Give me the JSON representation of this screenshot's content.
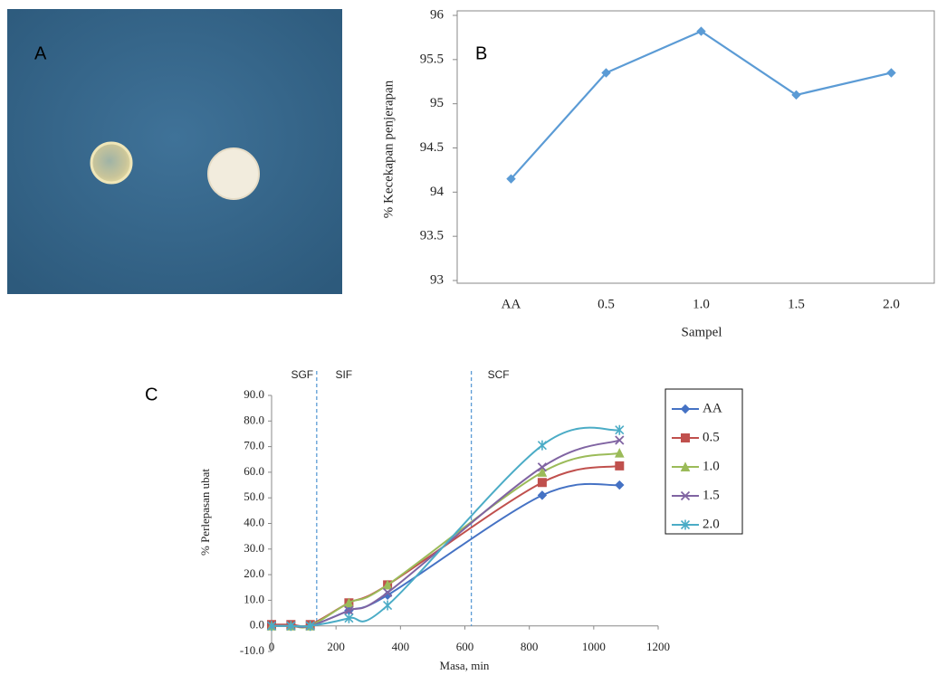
{
  "photo": {
    "label": "A"
  },
  "chart_data": [
    {
      "type": "line",
      "label": "B",
      "categories": [
        "AA",
        "0.5",
        "1.0",
        "1.5",
        "2.0"
      ],
      "values": [
        94.15,
        95.35,
        95.82,
        95.1,
        95.35
      ],
      "color": "#5b9bd5",
      "ylim": [
        93,
        96
      ],
      "yticks": [
        93,
        93.5,
        94,
        94.5,
        95,
        95.5,
        96
      ],
      "y_label": "% Kecekapan penjerapan",
      "x_label": "Sampel"
    },
    {
      "type": "line",
      "label": "C",
      "x": [
        0,
        60,
        120,
        240,
        360,
        840,
        1080
      ],
      "series": [
        {
          "name": "AA",
          "color": "#4572c4",
          "marker": "diamond",
          "values": [
            0,
            0,
            0,
            6,
            12,
            51,
            55
          ]
        },
        {
          "name": "0.5",
          "color": "#c0504d",
          "marker": "square",
          "values": [
            0.5,
            0.5,
            0.5,
            9,
            16,
            56,
            62.5
          ]
        },
        {
          "name": "1.0",
          "color": "#9bbb59",
          "marker": "triangle",
          "values": [
            0,
            0,
            0,
            9,
            16,
            60,
            67.5
          ]
        },
        {
          "name": "1.5",
          "color": "#8064a2",
          "marker": "x",
          "values": [
            0,
            0,
            0,
            6,
            13,
            62,
            72.5
          ]
        },
        {
          "name": "2.0",
          "color": "#4bacc6",
          "marker": "star",
          "values": [
            0,
            0,
            0,
            3,
            8,
            70.5,
            76.5
          ]
        }
      ],
      "xlim": [
        0,
        1200
      ],
      "xticks": [
        0,
        200,
        400,
        600,
        800,
        1000,
        1200
      ],
      "ylim": [
        -10,
        90
      ],
      "yticks": [
        {
          "value": -10,
          "label": "-10.0"
        },
        {
          "value": 0,
          "label": "0.0"
        },
        {
          "value": 10,
          "label": "10.0"
        },
        {
          "value": 20,
          "label": "20.0"
        },
        {
          "value": 30,
          "label": "30.0"
        },
        {
          "value": 40,
          "label": "40.0"
        },
        {
          "value": 50,
          "label": "50.0"
        },
        {
          "value": 60,
          "label": "60.0"
        },
        {
          "value": 70,
          "label": "70.0"
        },
        {
          "value": 80,
          "label": "80.0"
        },
        {
          "value": 90,
          "label": "90.0"
        }
      ],
      "phase_boundaries": [
        140,
        620
      ],
      "phases": [
        "SGF",
        "SIF",
        "SCF"
      ],
      "y_label": "% Perlepasan ubat",
      "x_label": "Masa, min"
    }
  ]
}
